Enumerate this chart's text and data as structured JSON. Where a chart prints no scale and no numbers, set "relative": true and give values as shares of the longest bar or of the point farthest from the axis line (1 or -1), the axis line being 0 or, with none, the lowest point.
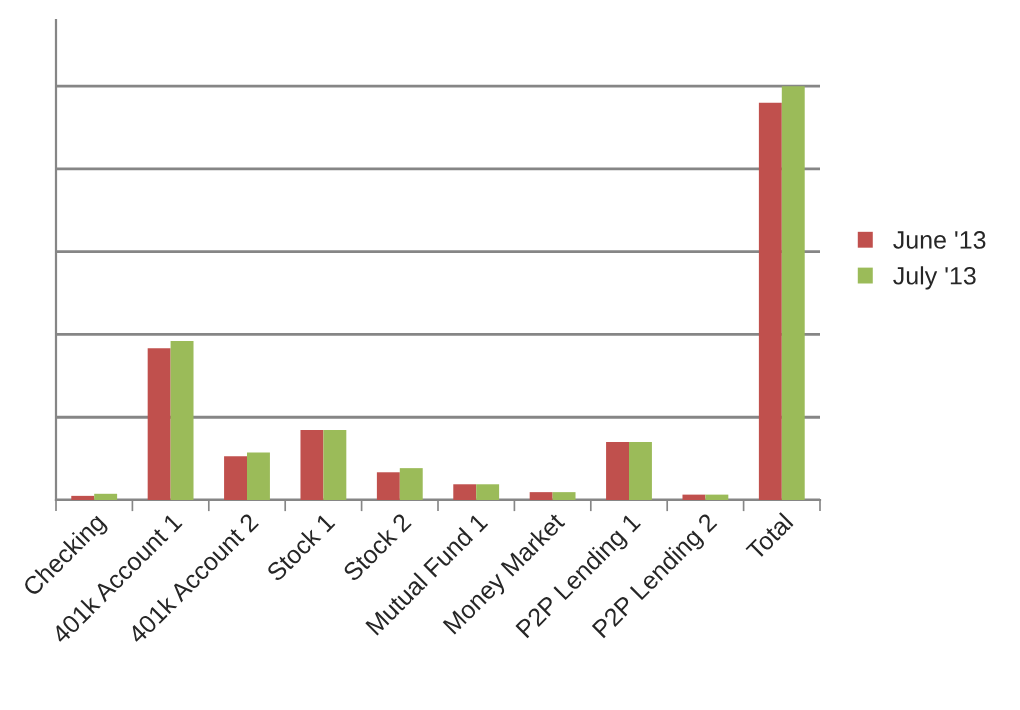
{
  "chart_data": {
    "type": "bar",
    "relative": true,
    "categories": [
      "Checking",
      "401k Account 1",
      "401k Account 2",
      "Stock 1",
      "Stock 2",
      "Mutual Fund 1",
      "Money Market",
      "P2P Lending 1",
      "P2P Lending 2",
      "Total"
    ],
    "series": [
      {
        "name": "June '13",
        "color": "#c0504d",
        "values": [
          0.01,
          0.367,
          0.106,
          0.169,
          0.067,
          0.038,
          0.019,
          0.14,
          0.013,
          0.96
        ]
      },
      {
        "name": "July '13",
        "color": "#9bbb59",
        "values": [
          0.015,
          0.384,
          0.115,
          0.169,
          0.077,
          0.038,
          0.019,
          0.14,
          0.013,
          1
        ]
      }
    ],
    "grid": "y",
    "legend": "right"
  }
}
